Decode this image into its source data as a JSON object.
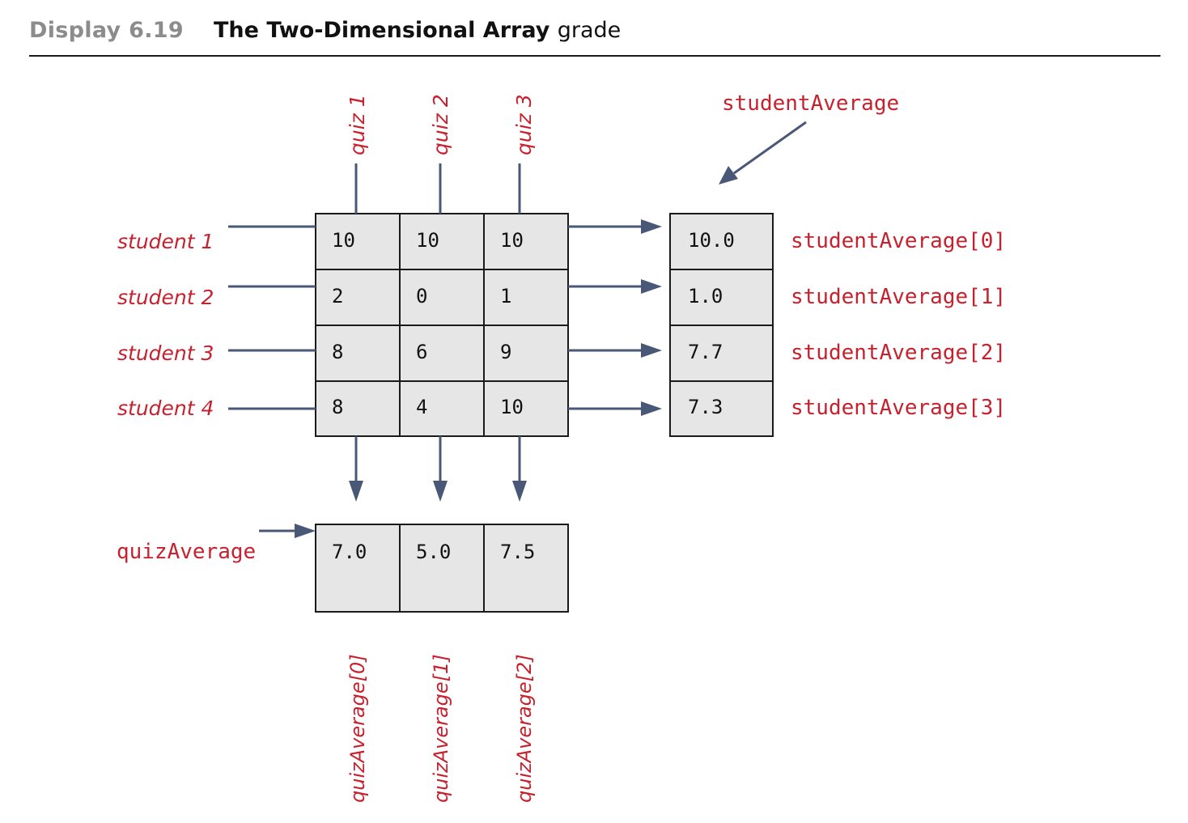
{
  "header": {
    "display_number": "Display 6.19",
    "title_prefix": "The Two-Dimensional Array",
    "title_array_name": "grade"
  },
  "diagram": {
    "quiz_labels": [
      "quiz 1",
      "quiz 2",
      "quiz 3"
    ],
    "student_labels": [
      "student 1",
      "student 2",
      "student 3",
      "student 4"
    ],
    "grade": [
      [
        "10",
        "10",
        "10"
      ],
      [
        "2",
        "0",
        "1"
      ],
      [
        "8",
        "6",
        "9"
      ],
      [
        "8",
        "4",
        "10"
      ]
    ],
    "student_average_name": "studentAverage",
    "student_average_values": [
      "10.0",
      "1.0",
      "7.7",
      "7.3"
    ],
    "student_average_labels": [
      "studentAverage[0]",
      "studentAverage[1]",
      "studentAverage[2]",
      "studentAverage[3]"
    ],
    "quiz_average_name": "quizAverage",
    "quiz_average_values": [
      "7.0",
      "5.0",
      "7.5"
    ],
    "quiz_average_labels": [
      "quizAverage[0]",
      "quizAverage[1]",
      "quizAverage[2]"
    ]
  },
  "colors": {
    "label_red": "#c8212e",
    "arrow": "#4a5878",
    "cell_fill": "#e6e6e6",
    "heading_gray": "#8c8c8c"
  }
}
